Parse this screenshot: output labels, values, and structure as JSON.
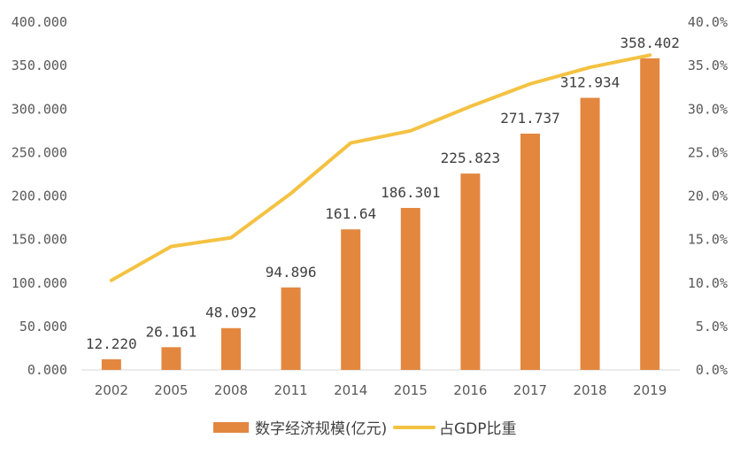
{
  "chart_data": {
    "type": "bar",
    "title": "",
    "xlabel": "",
    "ylabel": "",
    "categories": [
      "2002",
      "2005",
      "2008",
      "2011",
      "2014",
      "2015",
      "2016",
      "2017",
      "2018",
      "2019"
    ],
    "series": [
      {
        "name": "数字经济规模(亿元)",
        "type": "bar",
        "axis": "left",
        "values": [
          12.22,
          26.161,
          48.092,
          94.896,
          161.64,
          186.301,
          225.823,
          271.737,
          312.934,
          358.402
        ],
        "labels": [
          "12.220",
          "26.161",
          "48.092",
          "94.896",
          "161.64",
          "186.301",
          "225.823",
          "271.737",
          "312.934",
          "358.402"
        ],
        "color": "#E3873F"
      },
      {
        "name": "占GDP比重",
        "type": "line",
        "axis": "right",
        "values": [
          10.3,
          14.2,
          15.2,
          20.3,
          26.1,
          27.5,
          30.3,
          32.9,
          34.8,
          36.2
        ],
        "color": "#F4C242"
      }
    ],
    "ylim": [
      0,
      400
    ],
    "y_ticks": [
      "0.000",
      "50.000",
      "100.000",
      "150.000",
      "200.000",
      "250.000",
      "300.000",
      "350.000",
      "400.000"
    ],
    "y2lim": [
      0,
      40
    ],
    "y2_ticks": [
      "0.0%",
      "5.0%",
      "10.0%",
      "15.0%",
      "20.0%",
      "25.0%",
      "30.0%",
      "35.0%",
      "40.0%"
    ],
    "grid": false,
    "legend_position": "bottom"
  }
}
